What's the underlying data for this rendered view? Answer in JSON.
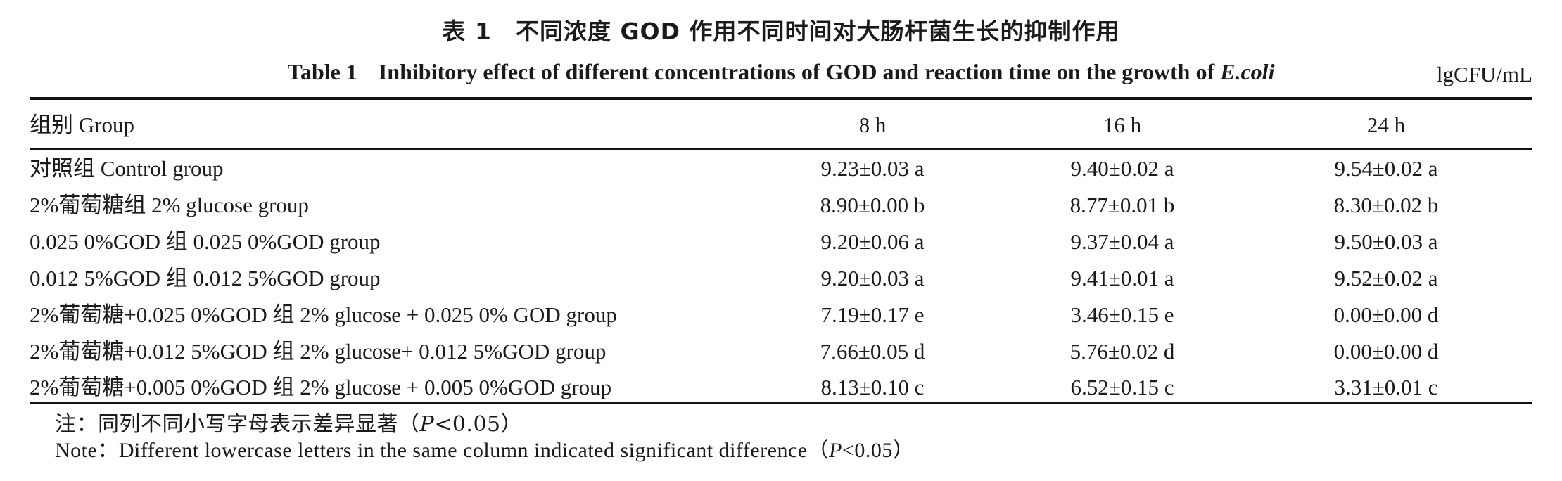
{
  "title_cn": "表 1　不同浓度 GOD 作用不同时间对大肠杆菌生长的抑制作用",
  "title_en": {
    "label": "Table 1",
    "text": "Inhibitory effect of different concentrations of GOD and reaction time on the growth of",
    "species": "E.coli"
  },
  "unit": "lgCFU/mL",
  "columns": [
    "组别 Group",
    "8 h",
    "16 h",
    "24 h"
  ],
  "rows": [
    {
      "group": "对照组 Control group",
      "h8": "9.23±0.03 a",
      "h16": "9.40±0.02 a",
      "h24": "9.54±0.02 a"
    },
    {
      "group": "2%葡萄糖组 2% glucose group",
      "h8": "8.90±0.00 b",
      "h16": "8.77±0.01 b",
      "h24": "8.30±0.02 b"
    },
    {
      "group": "0.025 0%GOD 组 0.025 0%GOD group",
      "h8": "9.20±0.06 a",
      "h16": "9.37±0.04 a",
      "h24": "9.50±0.03 a"
    },
    {
      "group": "0.012 5%GOD 组 0.012 5%GOD group",
      "h8": "9.20±0.03 a",
      "h16": "9.41±0.01 a",
      "h24": "9.52±0.02 a"
    },
    {
      "group": "2%葡萄糖+0.025 0%GOD 组 2% glucose + 0.025 0% GOD group",
      "h8": "7.19±0.17 e",
      "h16": "3.46±0.15 e",
      "h24": "0.00±0.00 d"
    },
    {
      "group": "2%葡萄糖+0.012 5%GOD 组 2% glucose+ 0.012 5%GOD group",
      "h8": "7.66±0.05 d",
      "h16": "5.76±0.02 d",
      "h24": "0.00±0.00 d"
    },
    {
      "group": "2%葡萄糖+0.005 0%GOD 组 2% glucose + 0.005 0%GOD group",
      "h8": "8.13±0.10 c",
      "h16": "6.52±0.15 c",
      "h24": "3.31±0.01 c"
    }
  ],
  "note_cn": {
    "prefix": "注：同列不同小写字母表示差异显著（",
    "p": "P",
    "suffix": "<0.05）"
  },
  "note_en": {
    "prefix": "Note：Different lowercase letters in the same column indicated significant difference（",
    "p": "P",
    "suffix": "<0.05）"
  }
}
